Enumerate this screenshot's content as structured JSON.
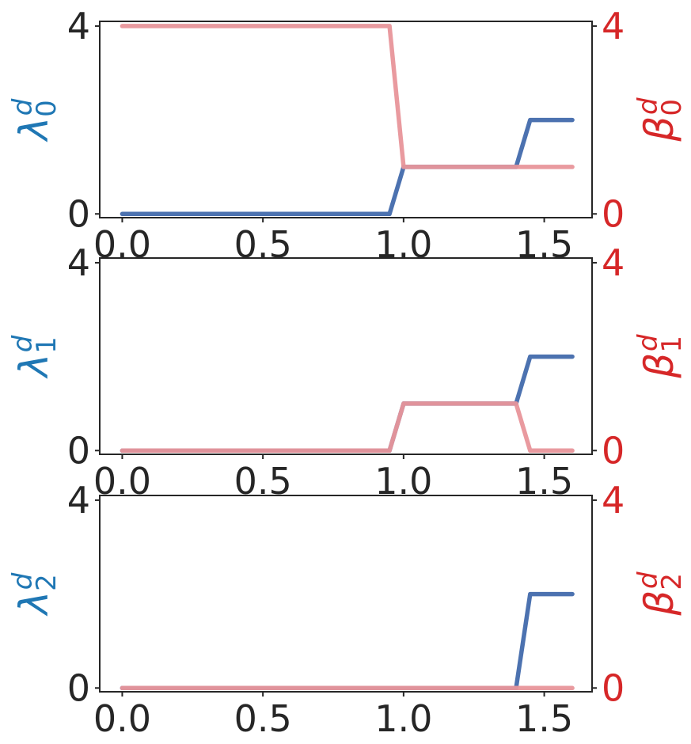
{
  "chart_data": [
    {
      "type": "line",
      "left_ylabel": {
        "symbol": "λ",
        "sub": "0",
        "sup": "d"
      },
      "right_ylabel": {
        "symbol": "β",
        "sub": "0",
        "sup": "d"
      },
      "xlim": [
        -0.08,
        1.67
      ],
      "ylim": [
        -0.08,
        4.1
      ],
      "xticks": [
        "0.0",
        "0.5",
        "1.0",
        "1.5"
      ],
      "yticks_left": [
        "0",
        "4"
      ],
      "yticks_right": [
        "0",
        "4"
      ],
      "series": [
        {
          "axis": "left",
          "color": "#4c72b0",
          "x": [
            0.0,
            0.95,
            1.0,
            1.4,
            1.45,
            1.6
          ],
          "y": [
            0,
            0,
            1,
            1,
            2,
            2
          ]
        },
        {
          "axis": "right",
          "color": "#e8959a",
          "x": [
            0.0,
            0.95,
            1.0,
            1.6
          ],
          "y": [
            4,
            4,
            1,
            1
          ]
        }
      ]
    },
    {
      "type": "line",
      "left_ylabel": {
        "symbol": "λ",
        "sub": "1",
        "sup": "d"
      },
      "right_ylabel": {
        "symbol": "β",
        "sub": "1",
        "sup": "d"
      },
      "xlim": [
        -0.08,
        1.67
      ],
      "ylim": [
        -0.08,
        4.1
      ],
      "xticks": [
        "0.0",
        "0.5",
        "1.0",
        "1.5"
      ],
      "yticks_left": [
        "0",
        "4"
      ],
      "yticks_right": [
        "0",
        "4"
      ],
      "series": [
        {
          "axis": "left",
          "color": "#4c72b0",
          "x": [
            0.0,
            0.95,
            1.0,
            1.4,
            1.45,
            1.6
          ],
          "y": [
            0,
            0,
            1,
            1,
            2,
            2
          ]
        },
        {
          "axis": "right",
          "color": "#e8959a",
          "x": [
            0.0,
            0.95,
            1.0,
            1.4,
            1.45,
            1.6
          ],
          "y": [
            0,
            0,
            1,
            1,
            0,
            0
          ]
        }
      ]
    },
    {
      "type": "line",
      "left_ylabel": {
        "symbol": "λ",
        "sub": "2",
        "sup": "d"
      },
      "right_ylabel": {
        "symbol": "β",
        "sub": "2",
        "sup": "d"
      },
      "xlim": [
        -0.08,
        1.67
      ],
      "ylim": [
        -0.08,
        4.1
      ],
      "xticks": [
        "0.0",
        "0.5",
        "1.0",
        "1.5"
      ],
      "yticks_left": [
        "0",
        "4"
      ],
      "yticks_right": [
        "0",
        "4"
      ],
      "series": [
        {
          "axis": "left",
          "color": "#4c72b0",
          "x": [
            0.0,
            1.4,
            1.45,
            1.6
          ],
          "y": [
            0,
            0,
            2,
            2
          ]
        },
        {
          "axis": "right",
          "color": "#e8959a",
          "x": [
            0.0,
            1.6
          ],
          "y": [
            0,
            0
          ]
        }
      ]
    }
  ],
  "colors": {
    "left_axis_label": "#1f77b4",
    "right_axis_label": "#d62728",
    "right_tick_label": "#d62728",
    "left_series": "#4c72b0",
    "right_series": "#e8959a"
  }
}
